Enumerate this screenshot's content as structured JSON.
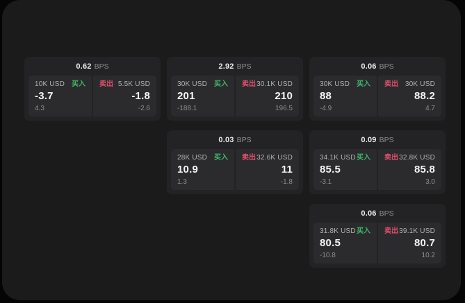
{
  "labels": {
    "bps_unit": "BPS",
    "buy": "买入",
    "sell": "卖出"
  },
  "colors": {
    "background": "#050505",
    "surface": "#1b1b1c",
    "card": "#232325",
    "tile": "#2b2b2d",
    "buy_accent": "#3eb86b",
    "sell_accent": "#df4f6d",
    "price_text": "#f4f4f4",
    "muted_text": "#8d8d8d"
  },
  "cards": [
    {
      "row": 1,
      "col": 1,
      "bps": "0.62",
      "buy": {
        "size": "10K USD",
        "price": "-3.7",
        "sub": "4.3"
      },
      "sell": {
        "size": "5.5K USD",
        "price": "-1.8",
        "sub": "-2.6"
      }
    },
    {
      "row": 1,
      "col": 2,
      "bps": "2.92",
      "buy": {
        "size": "30K USD",
        "price": "201",
        "sub": "-188.1"
      },
      "sell": {
        "size": "30.1K USD",
        "price": "210",
        "sub": "196.5"
      }
    },
    {
      "row": 1,
      "col": 3,
      "bps": "0.06",
      "buy": {
        "size": "30K USD",
        "price": "88",
        "sub": "-4.9"
      },
      "sell": {
        "size": "30K USD",
        "price": "88.2",
        "sub": "4.7"
      }
    },
    {
      "row": 2,
      "col": 2,
      "bps": "0.03",
      "buy": {
        "size": "28K USD",
        "price": "10.9",
        "sub": "1.3"
      },
      "sell": {
        "size": "32.6K USD",
        "price": "11",
        "sub": "-1.8"
      }
    },
    {
      "row": 2,
      "col": 3,
      "bps": "0.09",
      "buy": {
        "size": "34.1K USD",
        "price": "85.5",
        "sub": "-3.1"
      },
      "sell": {
        "size": "32.8K USD",
        "price": "85.8",
        "sub": "3.0"
      }
    },
    {
      "row": 3,
      "col": 3,
      "bps": "0.06",
      "buy": {
        "size": "31.8K USD",
        "price": "80.5",
        "sub": "-10.8"
      },
      "sell": {
        "size": "39.1K USD",
        "price": "80.7",
        "sub": "10.2"
      }
    }
  ]
}
